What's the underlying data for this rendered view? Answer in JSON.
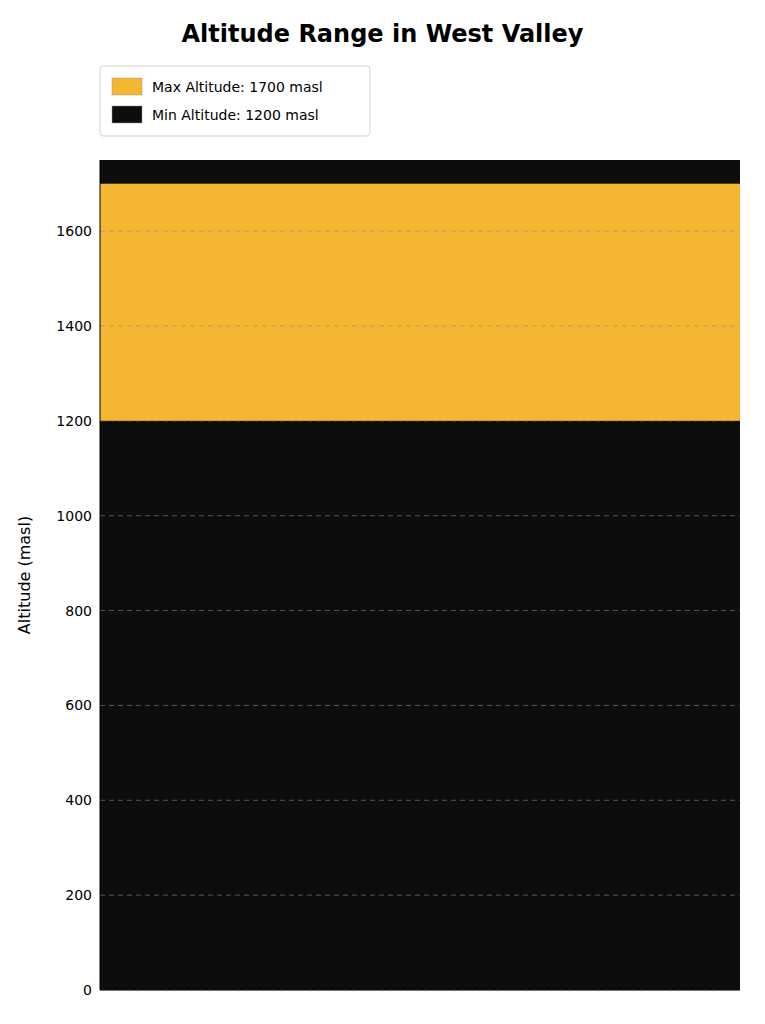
{
  "chart_data": {
    "type": "range",
    "title": "Altitude Range in West Valley",
    "y_label": "Altitude (masl)",
    "series": [
      {
        "name": "Max Altitude: 1700 masl",
        "color": "#F5B731",
        "values": [
          1700
        ]
      },
      {
        "name": "Min Altitude: 1200 masl",
        "color": "#0d0d0d",
        "values": [
          1200
        ]
      }
    ],
    "color": "#0d0d0d",
    "ylim": [
      0,
      1750
    ],
    "yticks": [
      0,
      200,
      400,
      600,
      800,
      1000,
      1200,
      1400,
      1600
    ],
    "grid": true,
    "legend": "upper left"
  }
}
